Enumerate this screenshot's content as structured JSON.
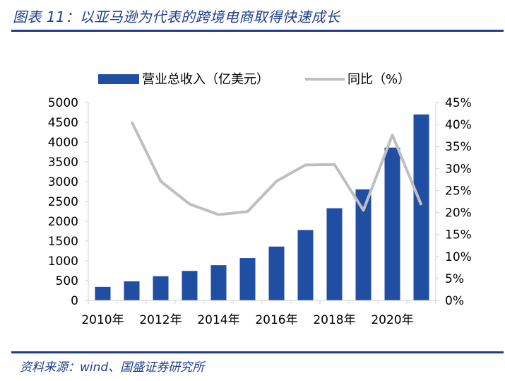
{
  "figure": {
    "title": "图表 11：以亚马逊为代表的跨境电商取得快速成长",
    "source": "资料来源：wind、国盛证券研究所"
  },
  "chart_data": {
    "type": "bar+line",
    "categories": [
      "2010年",
      "2011年",
      "2012年",
      "2013年",
      "2014年",
      "2015年",
      "2016年",
      "2017年",
      "2018年",
      "2019年",
      "2020年",
      "2021年"
    ],
    "x_tick_labels": [
      "2010年",
      "2012年",
      "2014年",
      "2016年",
      "2018年",
      "2020年"
    ],
    "series": [
      {
        "name": "营业总收入（亿美元）",
        "type": "bar",
        "axis": "left",
        "color": "#1f4ea3",
        "values": [
          342,
          481,
          611,
          745,
          890,
          1070,
          1360,
          1779,
          2329,
          2805,
          3861,
          4698
        ]
      },
      {
        "name": "同比（%）",
        "type": "line",
        "axis": "right",
        "color": "#bfbfbf",
        "values": [
          null,
          40.6,
          27.1,
          21.9,
          19.5,
          20.2,
          27.1,
          30.8,
          30.9,
          20.5,
          37.6,
          21.7
        ]
      }
    ],
    "y_left": {
      "min": 0,
      "max": 5000,
      "step": 500,
      "tick_labels": [
        "0",
        "500",
        "1000",
        "1500",
        "2000",
        "2500",
        "3000",
        "3500",
        "4000",
        "4500",
        "5000"
      ]
    },
    "y_right": {
      "min": 0,
      "max": 45,
      "step": 5,
      "tick_labels": [
        "0%",
        "5%",
        "10%",
        "15%",
        "20%",
        "25%",
        "30%",
        "35%",
        "40%",
        "45%"
      ]
    },
    "legend": {
      "placement": "top"
    },
    "grid": false
  }
}
